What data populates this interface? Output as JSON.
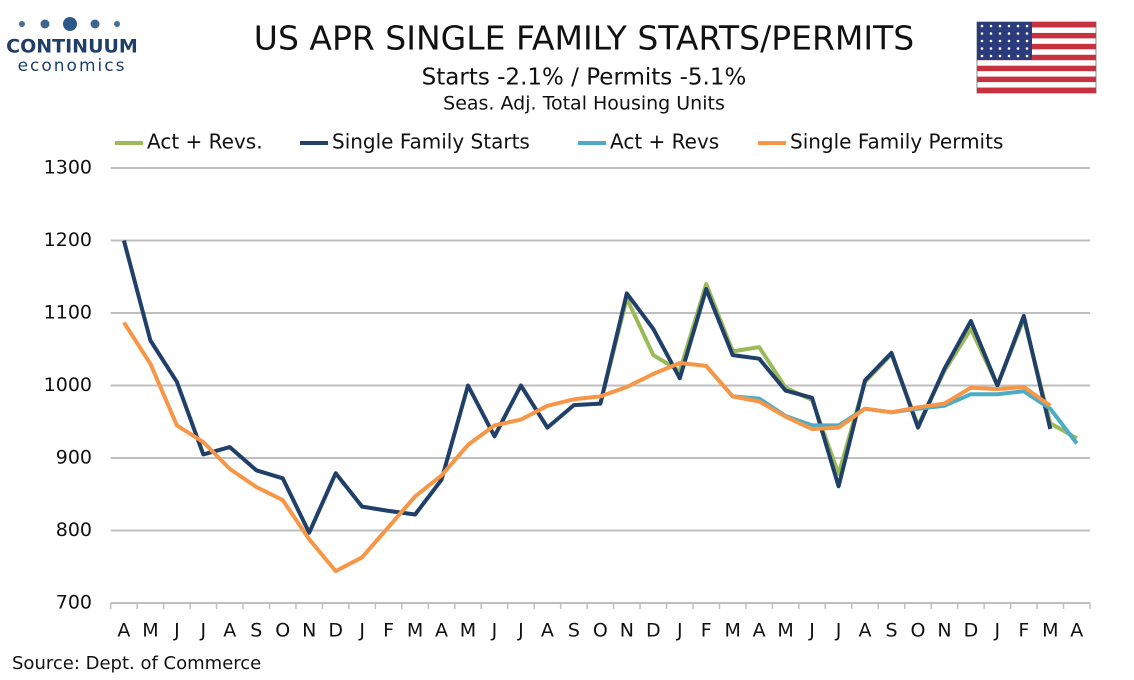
{
  "logo": {
    "name": "CONTINUUM",
    "tagline": "economics"
  },
  "chart_data": {
    "type": "line",
    "title": "US APR SINGLE FAMILY STARTS/PERMITS",
    "subtitle": "Starts  -2.1% / Permits -5.1%",
    "subtitle2": "Seas. Adj. Total Housing Units",
    "source": "Source: Dept. of Commerce",
    "categories": [
      "A",
      "M",
      "J",
      "J",
      "A",
      "S",
      "O",
      "N",
      "D",
      "J",
      "F",
      "M",
      "A",
      "M",
      "J",
      "J",
      "A",
      "S",
      "O",
      "N",
      "D",
      "J",
      "F",
      "M",
      "A",
      "M",
      "J",
      "J",
      "A",
      "S",
      "O",
      "N",
      "D",
      "J",
      "F",
      "M",
      "A"
    ],
    "ylim": [
      700,
      1300
    ],
    "yticks": [
      700,
      800,
      900,
      1000,
      1100,
      1200,
      1300
    ],
    "grid": true,
    "legend": "top",
    "series": [
      {
        "name": "Act + Revs.",
        "color": "#9bbb59",
        "values": [
          null,
          null,
          null,
          null,
          null,
          null,
          null,
          null,
          null,
          null,
          null,
          null,
          null,
          null,
          null,
          null,
          null,
          null,
          975,
          1120,
          1042,
          1020,
          1140,
          1047,
          1053,
          997,
          980,
          878,
          1005,
          1043,
          945,
          1020,
          1078,
          1000,
          1092,
          948,
          927
        ]
      },
      {
        "name": "Single Family Starts",
        "color": "#203f69",
        "values": [
          1200,
          1062,
          1005,
          905,
          915,
          883,
          872,
          797,
          879,
          833,
          827,
          822,
          870,
          1000,
          930,
          1000,
          942,
          973,
          975,
          1127,
          1078,
          1010,
          1133,
          1042,
          1037,
          993,
          983,
          861,
          1007,
          1045,
          942,
          1023,
          1089,
          1000,
          1096,
          940,
          null
        ]
      },
      {
        "name": "Act + Revs",
        "color": "#4bacc6",
        "values": [
          null,
          null,
          null,
          null,
          null,
          null,
          null,
          null,
          null,
          null,
          null,
          null,
          null,
          null,
          null,
          null,
          null,
          null,
          null,
          null,
          null,
          null,
          1027,
          985,
          982,
          958,
          945,
          945,
          968,
          963,
          968,
          972,
          988,
          988,
          992,
          968,
          920
        ]
      },
      {
        "name": "Single Family Permits",
        "color": "#f79646",
        "values": [
          1087,
          1030,
          945,
          922,
          885,
          860,
          842,
          788,
          744,
          763,
          805,
          847,
          876,
          918,
          945,
          953,
          972,
          981,
          985,
          998,
          1016,
          1031,
          1027,
          985,
          978,
          957,
          940,
          942,
          968,
          963,
          970,
          975,
          997,
          995,
          998,
          972,
          null
        ]
      }
    ]
  }
}
